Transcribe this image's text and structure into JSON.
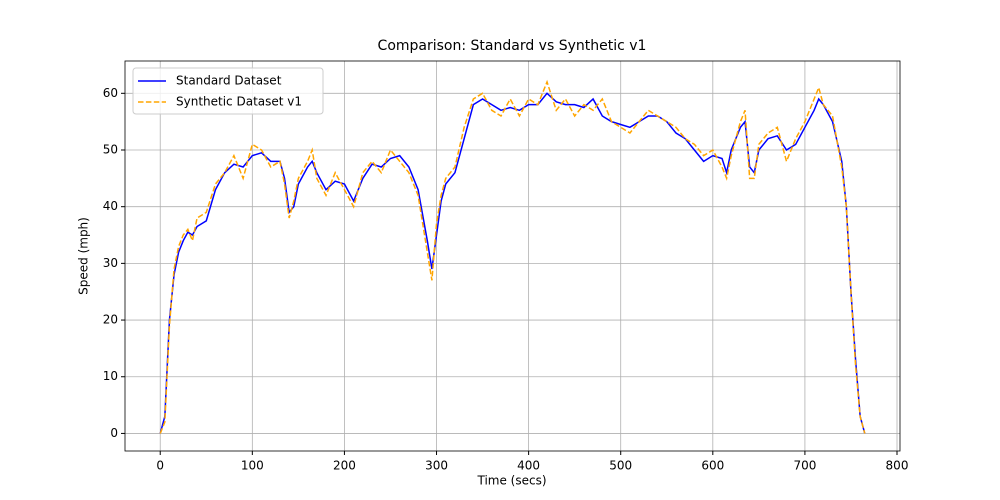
{
  "chart_data": {
    "type": "line",
    "title": "Comparison: Standard vs Synthetic v1",
    "x_label": "Time (secs)",
    "y_label": "Speed (mph)",
    "x": [
      0,
      5,
      10,
      15,
      20,
      25,
      30,
      35,
      40,
      50,
      60,
      70,
      80,
      90,
      100,
      110,
      120,
      130,
      135,
      140,
      145,
      150,
      160,
      165,
      170,
      180,
      190,
      200,
      210,
      220,
      230,
      240,
      250,
      260,
      270,
      280,
      290,
      295,
      300,
      305,
      310,
      320,
      330,
      340,
      350,
      360,
      370,
      380,
      390,
      400,
      410,
      420,
      430,
      440,
      450,
      460,
      470,
      480,
      490,
      500,
      510,
      520,
      530,
      540,
      550,
      560,
      570,
      580,
      590,
      600,
      610,
      615,
      620,
      630,
      635,
      640,
      645,
      650,
      660,
      670,
      680,
      690,
      700,
      710,
      715,
      720,
      730,
      740,
      745,
      750,
      755,
      760,
      765
    ],
    "series": [
      {
        "name": "Standard Dataset",
        "color": "#0000ff",
        "dash": "solid",
        "values": [
          0,
          3,
          20,
          28,
          32,
          34,
          35.5,
          35,
          36.5,
          37.5,
          43,
          46,
          47.5,
          47,
          49,
          49.5,
          48,
          48,
          45,
          39,
          40,
          44,
          47,
          48,
          46,
          43,
          44.5,
          44,
          41,
          45,
          47.5,
          47,
          48.5,
          49,
          47,
          43,
          34,
          29,
          35,
          41,
          44,
          46,
          52,
          58,
          59,
          58,
          57,
          57.5,
          57,
          58,
          58,
          60,
          58.5,
          58,
          58,
          57.5,
          59,
          56,
          55,
          54.5,
          54,
          55,
          56,
          56,
          55,
          53,
          52,
          50,
          48,
          49,
          48.5,
          46,
          50,
          54,
          55,
          47,
          46,
          50,
          52,
          52.5,
          50,
          51,
          54,
          57,
          59,
          58,
          55,
          48,
          40,
          25,
          13,
          3,
          0
        ]
      },
      {
        "name": "Synthetic Dataset v1",
        "color": "#ffa500",
        "dash": "dashed",
        "values": [
          0,
          2,
          19,
          29,
          33,
          35,
          36,
          34,
          38,
          39,
          44,
          46,
          49,
          45,
          51,
          50,
          47,
          48,
          44,
          38,
          41,
          45,
          48,
          50,
          45,
          42,
          46,
          43,
          40,
          46,
          48,
          46,
          50,
          48,
          46,
          42,
          32,
          27,
          37,
          42,
          45,
          47,
          54,
          59,
          60,
          57,
          56,
          59,
          56,
          59,
          58,
          62,
          57,
          59,
          56,
          58,
          57,
          59,
          55,
          54,
          53,
          55,
          57,
          56,
          55,
          54,
          52,
          51,
          49,
          50,
          47,
          45,
          49,
          55,
          57,
          45,
          45,
          51,
          53,
          54,
          48,
          52,
          55,
          59,
          61,
          58,
          56,
          47,
          40,
          25,
          12,
          3,
          0
        ]
      }
    ],
    "xlim": [
      -38.25,
      803.25
    ],
    "ylim": [
      -3.1,
      65.7
    ],
    "xticks": [
      0,
      100,
      200,
      300,
      400,
      500,
      600,
      700,
      800
    ],
    "yticks": [
      0,
      10,
      20,
      30,
      40,
      50,
      60
    ],
    "grid": true,
    "legend": "upper left"
  }
}
